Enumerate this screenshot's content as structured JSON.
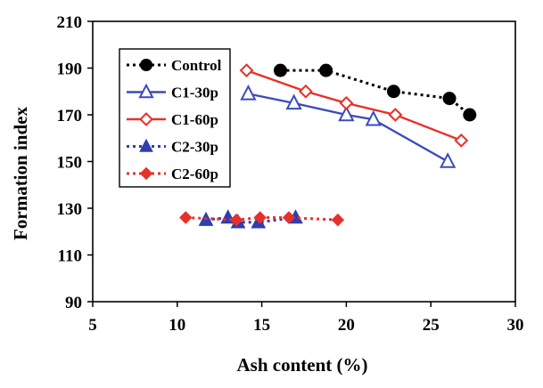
{
  "chart_data": {
    "type": "scatter",
    "title": "",
    "xlabel": "Ash content (%)",
    "ylabel": "Formation index",
    "xlim": [
      5,
      30
    ],
    "ylim": [
      90,
      210
    ],
    "xticks": [
      5,
      10,
      15,
      20,
      25,
      30
    ],
    "yticks": [
      90,
      110,
      130,
      150,
      170,
      190,
      210
    ],
    "grid": false,
    "legend_position": "top-left",
    "series": [
      {
        "name": "Control",
        "color": "#000000",
        "marker": "circle-filled",
        "line": "dotted",
        "x": [
          16.1,
          18.8,
          22.8,
          26.1,
          27.3
        ],
        "y": [
          189,
          189,
          180,
          177,
          170
        ]
      },
      {
        "name": "C1-30p",
        "color": "#3b4bb8",
        "marker": "triangle-open",
        "line": "solid",
        "x": [
          14.2,
          16.9,
          20.0,
          21.6,
          26.0
        ],
        "y": [
          179,
          175,
          170,
          168,
          150
        ]
      },
      {
        "name": "C1-60p",
        "color": "#e8302a",
        "marker": "diamond-open",
        "line": "solid",
        "x": [
          14.1,
          17.6,
          20.0,
          22.9,
          26.8
        ],
        "y": [
          189,
          180,
          175,
          170,
          159
        ]
      },
      {
        "name": "C2-30p",
        "color": "#2f3eb0",
        "marker": "triangle-filled",
        "line": "dotted",
        "x": [
          11.7,
          13.0,
          13.6,
          14.8,
          17.0
        ],
        "y": [
          125,
          126,
          124,
          124,
          126
        ]
      },
      {
        "name": "C2-60p",
        "color": "#e8302a",
        "marker": "diamond-filled",
        "line": "dotted",
        "x": [
          10.5,
          13.5,
          14.9,
          16.6,
          19.5
        ],
        "y": [
          126,
          125,
          126,
          126,
          125
        ]
      }
    ]
  }
}
